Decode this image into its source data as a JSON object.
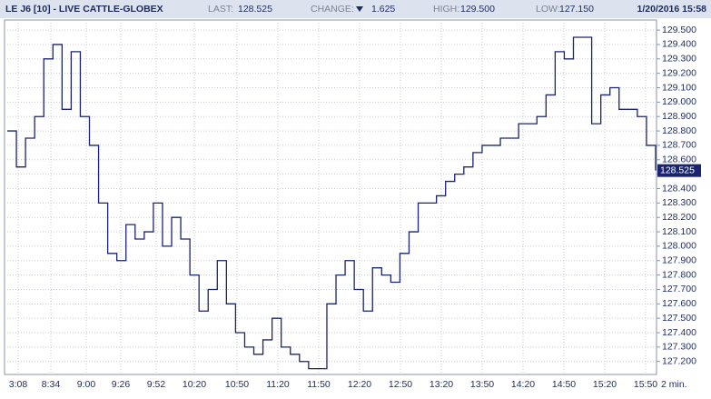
{
  "chart_data": {
    "type": "line",
    "title": "LE J6 [10] - LIVE CATTLE-GLOBEX",
    "stats": {
      "last_label": "LAST:",
      "last": "128.525",
      "change_label": "CHANGE:",
      "change": "1.625",
      "high_label": "HIGH:",
      "high": "129.500",
      "low_label": "LOW:",
      "low": "127.150",
      "timestamp": "1/20/2016 15:58"
    },
    "last_value": {
      "value": 128.525,
      "label": "128.525"
    },
    "interval_label": "2 min.",
    "xtick_labels": [
      "3:08",
      "8:34",
      "9:00",
      "9:26",
      "9:52",
      "10:20",
      "10:50",
      "11:20",
      "11:50",
      "12:20",
      "12:50",
      "13:20",
      "13:50",
      "14:20",
      "14:50",
      "15:20",
      "15:50"
    ],
    "color": "#1b2470",
    "grid": true,
    "ylim": [
      127.11,
      129.57
    ],
    "yticks": [
      {
        "value": 127.2,
        "label": "127.200"
      },
      {
        "value": 127.3,
        "label": "127.300"
      },
      {
        "value": 127.4,
        "label": "127.400"
      },
      {
        "value": 127.5,
        "label": "127.500"
      },
      {
        "value": 127.6,
        "label": "127.600"
      },
      {
        "value": 127.7,
        "label": "127.700"
      },
      {
        "value": 127.8,
        "label": "127.800"
      },
      {
        "value": 127.9,
        "label": "127.900"
      },
      {
        "value": 128.0,
        "label": "128.000"
      },
      {
        "value": 128.1,
        "label": "128.100"
      },
      {
        "value": 128.2,
        "label": "128.200"
      },
      {
        "value": 128.3,
        "label": "128.300"
      },
      {
        "value": 128.4,
        "label": "128.400"
      },
      {
        "value": 128.5,
        "label": "128.500"
      },
      {
        "value": 128.6,
        "label": "128.600"
      },
      {
        "value": 128.7,
        "label": "128.700"
      },
      {
        "value": 128.8,
        "label": "128.800"
      },
      {
        "value": 128.9,
        "label": "128.900"
      },
      {
        "value": 129.0,
        "label": "129.000"
      },
      {
        "value": 129.1,
        "label": "129.100"
      },
      {
        "value": 129.2,
        "label": "129.200"
      },
      {
        "value": 129.3,
        "label": "129.300"
      },
      {
        "value": 129.4,
        "label": "129.400"
      },
      {
        "value": 129.5,
        "label": "129.500"
      }
    ],
    "values": [
      128.8,
      128.55,
      128.75,
      128.9,
      129.3,
      129.4,
      128.95,
      129.35,
      128.9,
      128.7,
      128.3,
      127.95,
      127.9,
      128.15,
      128.05,
      128.1,
      128.3,
      128.0,
      128.2,
      128.05,
      127.8,
      127.55,
      127.7,
      127.9,
      127.6,
      127.4,
      127.3,
      127.25,
      127.35,
      127.5,
      127.3,
      127.25,
      127.2,
      127.15,
      127.15,
      127.6,
      127.8,
      127.9,
      127.7,
      127.55,
      127.85,
      127.8,
      127.75,
      127.95,
      128.1,
      128.3,
      128.3,
      128.35,
      128.45,
      128.5,
      128.55,
      128.65,
      128.7,
      128.7,
      128.75,
      128.75,
      128.85,
      128.85,
      128.9,
      129.05,
      129.35,
      129.3,
      129.45,
      129.45,
      128.85,
      129.05,
      129.1,
      128.95,
      128.95,
      128.9,
      128.7,
      128.525
    ]
  }
}
